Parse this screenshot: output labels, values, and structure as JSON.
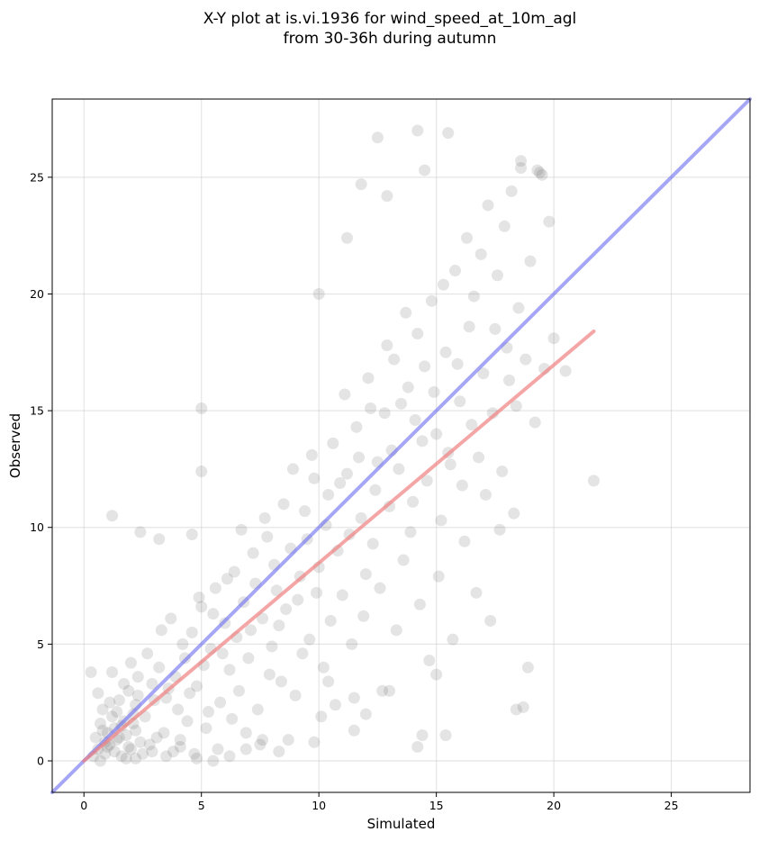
{
  "chart_data": {
    "type": "scatter",
    "title": "X-Y plot at is.vi.1936 for wind_speed_at_10m_agl",
    "subtitle": "from 30-36h during autumn",
    "xlabel": "Simulated",
    "ylabel": "Observed",
    "xlim": [
      -1.35,
      28.35
    ],
    "ylim": [
      -1.35,
      28.35
    ],
    "x_ticks": [
      0,
      5,
      10,
      15,
      20,
      25
    ],
    "y_ticks": [
      0,
      5,
      10,
      15,
      20,
      25
    ],
    "x_tick_labels": [
      "0",
      "5",
      "10",
      "15",
      "20",
      "25"
    ],
    "y_tick_labels": [
      "0",
      "5",
      "10",
      "15",
      "20",
      "25"
    ],
    "grid": true,
    "point_color": "#555555",
    "identity_line": {
      "color": "#6a6af0",
      "x": [
        -1.35,
        28.35
      ],
      "y": [
        -1.35,
        28.35
      ]
    },
    "fit_line": {
      "color": "#f08080",
      "x": [
        0.0,
        21.7
      ],
      "y": [
        0.0,
        18.4
      ]
    },
    "points": [
      [
        0.5,
        1.0
      ],
      [
        0.6,
        0.5
      ],
      [
        0.7,
        1.6
      ],
      [
        0.8,
        2.2
      ],
      [
        0.9,
        0.3
      ],
      [
        1.0,
        1.2
      ],
      [
        1.1,
        0.7
      ],
      [
        1.2,
        1.9
      ],
      [
        1.3,
        1.4
      ],
      [
        1.4,
        0.9
      ],
      [
        1.5,
        2.6
      ],
      [
        1.6,
        0.2
      ],
      [
        1.7,
        1.7
      ],
      [
        1.8,
        1.1
      ],
      [
        1.9,
        3.0
      ],
      [
        2.0,
        0.5
      ],
      [
        2.1,
        2.0
      ],
      [
        2.2,
        1.3
      ],
      [
        2.3,
        3.6
      ],
      [
        2.4,
        0.8
      ],
      [
        0.7,
        0.0
      ],
      [
        0.9,
        0.8
      ],
      [
        1.1,
        2.5
      ],
      [
        1.3,
        0.4
      ],
      [
        1.5,
        1.0
      ],
      [
        1.7,
        3.3
      ],
      [
        1.9,
        0.6
      ],
      [
        2.1,
        1.6
      ],
      [
        2.3,
        2.8
      ],
      [
        2.5,
        0.3
      ],
      [
        0.4,
        0.2
      ],
      [
        0.6,
        2.9
      ],
      [
        0.8,
        1.3
      ],
      [
        1.0,
        0.6
      ],
      [
        1.2,
        3.8
      ],
      [
        1.4,
        2.1
      ],
      [
        1.6,
        1.5
      ],
      [
        1.8,
        0.1
      ],
      [
        2.0,
        4.2
      ],
      [
        2.2,
        2.4
      ],
      [
        2.6,
        1.9
      ],
      [
        2.8,
        0.7
      ],
      [
        3.0,
        2.6
      ],
      [
        3.2,
        4.0
      ],
      [
        3.4,
        1.2
      ],
      [
        3.6,
        3.1
      ],
      [
        3.8,
        0.4
      ],
      [
        4.0,
        2.2
      ],
      [
        4.2,
        5.0
      ],
      [
        4.4,
        1.7
      ],
      [
        2.7,
        4.6
      ],
      [
        2.9,
        3.3
      ],
      [
        3.1,
        1.0
      ],
      [
        3.3,
        5.6
      ],
      [
        3.5,
        2.7
      ],
      [
        3.7,
        6.1
      ],
      [
        3.9,
        3.6
      ],
      [
        4.1,
        0.9
      ],
      [
        4.3,
        4.4
      ],
      [
        4.5,
        2.9
      ],
      [
        4.6,
        5.5
      ],
      [
        4.8,
        3.2
      ],
      [
        5.0,
        6.6
      ],
      [
        5.2,
        1.4
      ],
      [
        5.4,
        4.8
      ],
      [
        5.6,
        7.4
      ],
      [
        5.8,
        2.5
      ],
      [
        6.0,
        5.9
      ],
      [
        6.2,
        3.9
      ],
      [
        6.4,
        8.1
      ],
      [
        4.7,
        0.3
      ],
      [
        4.9,
        7.0
      ],
      [
        5.1,
        4.1
      ],
      [
        5.3,
        2.1
      ],
      [
        5.5,
        6.3
      ],
      [
        5.7,
        0.5
      ],
      [
        5.9,
        4.6
      ],
      [
        6.1,
        7.8
      ],
      [
        6.3,
        1.8
      ],
      [
        6.5,
        5.3
      ],
      [
        6.6,
        3.0
      ],
      [
        6.8,
        6.8
      ],
      [
        7.0,
        4.4
      ],
      [
        7.2,
        8.9
      ],
      [
        7.4,
        2.2
      ],
      [
        7.6,
        6.1
      ],
      [
        7.8,
        9.6
      ],
      [
        8.0,
        4.9
      ],
      [
        8.2,
        7.3
      ],
      [
        8.4,
        3.4
      ],
      [
        6.7,
        9.9
      ],
      [
        6.9,
        1.2
      ],
      [
        7.1,
        5.6
      ],
      [
        7.3,
        7.6
      ],
      [
        7.5,
        0.7
      ],
      [
        7.7,
        10.4
      ],
      [
        7.9,
        3.7
      ],
      [
        8.1,
        8.4
      ],
      [
        8.3,
        5.8
      ],
      [
        8.5,
        11.0
      ],
      [
        8.6,
        6.5
      ],
      [
        8.8,
        9.1
      ],
      [
        9.0,
        2.8
      ],
      [
        9.2,
        7.9
      ],
      [
        9.4,
        10.7
      ],
      [
        9.6,
        5.2
      ],
      [
        9.8,
        12.1
      ],
      [
        10.0,
        8.3
      ],
      [
        10.2,
        4.0
      ],
      [
        10.4,
        11.4
      ],
      [
        8.7,
        0.9
      ],
      [
        8.9,
        12.5
      ],
      [
        9.1,
        6.9
      ],
      [
        9.3,
        4.6
      ],
      [
        9.5,
        9.5
      ],
      [
        9.7,
        13.1
      ],
      [
        9.9,
        7.2
      ],
      [
        10.1,
        1.9
      ],
      [
        10.3,
        10.1
      ],
      [
        10.5,
        6.0
      ],
      [
        10.6,
        13.6
      ],
      [
        10.8,
        9.0
      ],
      [
        11.0,
        7.1
      ],
      [
        11.2,
        12.3
      ],
      [
        11.4,
        5.0
      ],
      [
        11.6,
        14.3
      ],
      [
        11.8,
        10.4
      ],
      [
        12.0,
        8.0
      ],
      [
        12.2,
        15.1
      ],
      [
        12.4,
        11.6
      ],
      [
        10.7,
        2.4
      ],
      [
        10.9,
        11.9
      ],
      [
        11.1,
        15.7
      ],
      [
        11.3,
        9.7
      ],
      [
        11.5,
        1.3
      ],
      [
        11.7,
        13.0
      ],
      [
        11.9,
        6.2
      ],
      [
        12.1,
        16.4
      ],
      [
        12.3,
        9.3
      ],
      [
        12.5,
        12.8
      ],
      [
        12.6,
        7.4
      ],
      [
        12.8,
        14.9
      ],
      [
        13.0,
        10.9
      ],
      [
        13.2,
        17.2
      ],
      [
        13.4,
        12.5
      ],
      [
        13.6,
        8.6
      ],
      [
        13.8,
        16.0
      ],
      [
        14.0,
        11.1
      ],
      [
        14.2,
        18.3
      ],
      [
        14.4,
        13.7
      ],
      [
        12.7,
        3.0
      ],
      [
        12.9,
        17.8
      ],
      [
        13.1,
        13.3
      ],
      [
        13.3,
        5.6
      ],
      [
        13.5,
        15.3
      ],
      [
        13.7,
        19.2
      ],
      [
        13.9,
        9.8
      ],
      [
        14.1,
        14.6
      ],
      [
        14.3,
        6.7
      ],
      [
        14.5,
        16.9
      ],
      [
        14.6,
        12.0
      ],
      [
        14.8,
        19.7
      ],
      [
        15.0,
        14.0
      ],
      [
        15.2,
        10.3
      ],
      [
        15.4,
        17.5
      ],
      [
        15.6,
        12.7
      ],
      [
        15.8,
        21.0
      ],
      [
        16.0,
        15.4
      ],
      [
        16.2,
        9.4
      ],
      [
        16.4,
        18.6
      ],
      [
        14.7,
        4.3
      ],
      [
        14.9,
        15.8
      ],
      [
        15.1,
        7.9
      ],
      [
        15.3,
        20.4
      ],
      [
        15.5,
        13.2
      ],
      [
        15.7,
        5.2
      ],
      [
        15.9,
        17.0
      ],
      [
        16.1,
        11.8
      ],
      [
        16.3,
        22.4
      ],
      [
        16.5,
        14.4
      ],
      [
        16.6,
        19.9
      ],
      [
        16.8,
        13.0
      ],
      [
        17.0,
        16.6
      ],
      [
        17.2,
        23.8
      ],
      [
        17.4,
        14.9
      ],
      [
        17.6,
        20.8
      ],
      [
        17.8,
        12.4
      ],
      [
        18.0,
        17.7
      ],
      [
        18.2,
        24.4
      ],
      [
        18.4,
        15.2
      ],
      [
        16.7,
        7.2
      ],
      [
        16.9,
        21.7
      ],
      [
        17.1,
        11.4
      ],
      [
        17.3,
        6.0
      ],
      [
        17.5,
        18.5
      ],
      [
        17.7,
        9.9
      ],
      [
        17.9,
        22.9
      ],
      [
        18.1,
        16.3
      ],
      [
        18.3,
        10.6
      ],
      [
        18.5,
        19.4
      ],
      [
        18.6,
        25.4
      ],
      [
        18.8,
        17.2
      ],
      [
        19.0,
        21.4
      ],
      [
        19.2,
        14.5
      ],
      [
        19.4,
        25.2
      ],
      [
        19.6,
        16.8
      ],
      [
        19.8,
        23.1
      ],
      [
        20.0,
        18.1
      ],
      [
        18.7,
        2.3
      ],
      [
        18.9,
        4.0
      ],
      [
        0.3,
        3.8
      ],
      [
        1.2,
        10.5
      ],
      [
        2.4,
        9.8
      ],
      [
        3.2,
        9.5
      ],
      [
        4.6,
        9.7
      ],
      [
        5.0,
        12.4
      ],
      [
        5.0,
        15.1
      ],
      [
        10.0,
        20.0
      ],
      [
        11.8,
        24.7
      ],
      [
        11.2,
        22.4
      ],
      [
        12.5,
        26.7
      ],
      [
        12.9,
        24.2
      ],
      [
        14.2,
        27.0
      ],
      [
        15.5,
        26.9
      ],
      [
        14.5,
        25.3
      ],
      [
        18.6,
        25.7
      ],
      [
        19.3,
        25.3
      ],
      [
        19.5,
        25.1
      ],
      [
        21.7,
        12.0
      ],
      [
        20.5,
        16.7
      ],
      [
        18.4,
        2.2
      ],
      [
        15.0,
        3.7
      ],
      [
        15.4,
        1.1
      ],
      [
        14.2,
        0.6
      ],
      [
        14.4,
        1.1
      ],
      [
        13.0,
        3.0
      ],
      [
        12.0,
        2.0
      ],
      [
        11.5,
        2.7
      ],
      [
        10.4,
        3.4
      ],
      [
        9.8,
        0.8
      ],
      [
        2.2,
        0.1
      ],
      [
        2.9,
        0.4
      ],
      [
        3.5,
        0.2
      ],
      [
        4.1,
        0.6
      ],
      [
        4.8,
        0.1
      ],
      [
        5.5,
        0.0
      ],
      [
        6.2,
        0.2
      ],
      [
        6.9,
        0.5
      ],
      [
        7.6,
        0.9
      ],
      [
        8.3,
        0.4
      ]
    ]
  }
}
